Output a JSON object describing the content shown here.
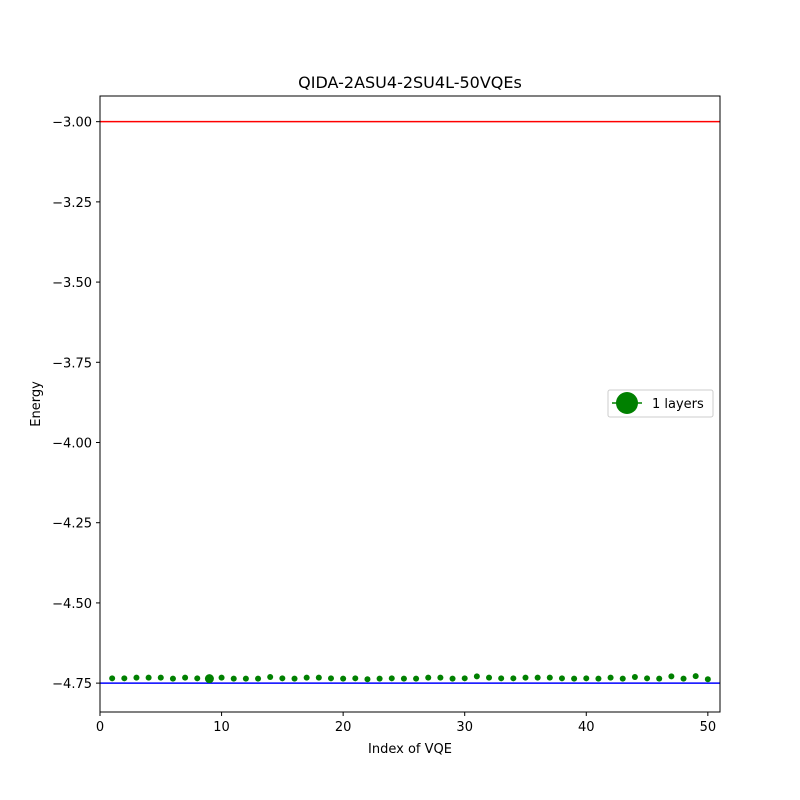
{
  "chart_data": {
    "type": "scatter",
    "title": "QIDA-2ASU4-2SU4L-50VQEs",
    "xlabel": "Index of VQE",
    "ylabel": "Energy",
    "xlim": [
      0,
      51
    ],
    "ylim": [
      -4.84,
      -2.92
    ],
    "xticks": [
      0,
      10,
      20,
      30,
      40,
      50
    ],
    "yticks": [
      -3.0,
      -3.25,
      -3.5,
      -3.75,
      -4.0,
      -4.25,
      -4.5,
      -4.75
    ],
    "xtick_labels": [
      "0",
      "10",
      "20",
      "30",
      "40",
      "50"
    ],
    "ytick_labels": [
      "−3.00",
      "−3.25",
      "−3.50",
      "−3.75",
      "−4.00",
      "−4.25",
      "−4.50",
      "−4.75"
    ],
    "reference_lines": [
      {
        "name": "upper-reference-line",
        "y": -3.0,
        "color": "#ff0000"
      },
      {
        "name": "ground-state-line",
        "y": -4.75,
        "color": "#0000ff"
      }
    ],
    "series": [
      {
        "name": "1 layers",
        "color": "#008000",
        "x": [
          1,
          2,
          3,
          4,
          5,
          6,
          7,
          8,
          9,
          10,
          11,
          12,
          13,
          14,
          15,
          16,
          17,
          18,
          19,
          20,
          21,
          22,
          23,
          24,
          25,
          26,
          27,
          28,
          29,
          30,
          31,
          32,
          33,
          34,
          35,
          36,
          37,
          38,
          39,
          40,
          41,
          42,
          43,
          44,
          45,
          46,
          47,
          48,
          49,
          50
        ],
        "values": [
          -4.735,
          -4.735,
          -4.733,
          -4.733,
          -4.733,
          -4.736,
          -4.733,
          -4.735,
          -4.736,
          -4.733,
          -4.736,
          -4.736,
          -4.736,
          -4.731,
          -4.735,
          -4.736,
          -4.733,
          -4.733,
          -4.735,
          -4.736,
          -4.735,
          -4.738,
          -4.736,
          -4.735,
          -4.736,
          -4.736,
          -4.733,
          -4.733,
          -4.736,
          -4.735,
          -4.729,
          -4.733,
          -4.735,
          -4.735,
          -4.733,
          -4.733,
          -4.733,
          -4.735,
          -4.736,
          -4.735,
          -4.736,
          -4.733,
          -4.736,
          -4.731,
          -4.735,
          -4.736,
          -4.729,
          -4.736,
          -4.728,
          -4.738
        ],
        "highlight_index": 9
      }
    ],
    "legend": {
      "position": "center-right",
      "entries": [
        "1 layers"
      ]
    }
  }
}
